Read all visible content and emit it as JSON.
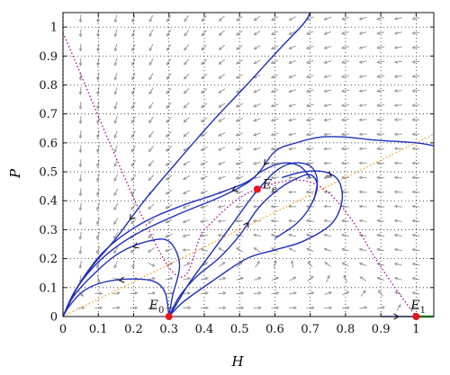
{
  "chart_data": {
    "type": "phase-portrait",
    "xlabel": "H",
    "ylabel": "P",
    "xlim": [
      0,
      1.05
    ],
    "ylim": [
      0,
      1.05
    ],
    "xticks": [
      0,
      0.1,
      0.2,
      0.3,
      0.4,
      0.5,
      0.6,
      0.7,
      0.8,
      0.9,
      1
    ],
    "yticks": [
      0,
      0.1,
      0.2,
      0.3,
      0.4,
      0.5,
      0.6,
      0.7,
      0.8,
      0.9,
      1
    ],
    "xtick_labels": [
      "0",
      "0.1",
      "0.2",
      "0.3",
      "0.4",
      "0.5",
      "0.6",
      "0.7",
      "0.8",
      "0.9",
      "1"
    ],
    "ytick_labels": [
      "0",
      "0.1",
      "0.2",
      "0.3",
      "0.4",
      "0.5",
      "0.6",
      "0.7",
      "0.8",
      "0.9",
      "1"
    ],
    "grid": "dotted",
    "colors": {
      "trajectory": "#1f2fb8",
      "equilibrium": "#e8141e",
      "vector_field": "#9a9a9a",
      "nullcline_h": "#b1008f",
      "nullcline_p": "#ff9a1e",
      "axis_segment": "#2fb52f"
    },
    "equilibria": [
      {
        "label": "E0",
        "sub": "0",
        "main": "E",
        "x": 0.3,
        "y": 0.0
      },
      {
        "label": "E1",
        "sub": "1",
        "main": "E",
        "x": 1.0,
        "y": 0.0
      },
      {
        "label": "Ee",
        "sub": "e",
        "main": "E",
        "x": 0.55,
        "y": 0.44
      }
    ],
    "trajectories": [
      {
        "points": [
          [
            0,
            0
          ],
          [
            0.03,
            0.08
          ],
          [
            0.08,
            0.17
          ],
          [
            0.15,
            0.27
          ],
          [
            0.23,
            0.4
          ],
          [
            0.32,
            0.53
          ],
          [
            0.42,
            0.67
          ],
          [
            0.52,
            0.8
          ],
          [
            0.61,
            0.92
          ],
          [
            0.68,
            1.01
          ],
          [
            0.7,
            1.05
          ]
        ],
        "arrow_at": 3,
        "arrow_dir": -1
      },
      {
        "points": [
          [
            0,
            0
          ],
          [
            0.05,
            0.12
          ],
          [
            0.12,
            0.23
          ],
          [
            0.22,
            0.32
          ],
          [
            0.33,
            0.38
          ],
          [
            0.45,
            0.43
          ],
          [
            0.54,
            0.48
          ],
          [
            0.6,
            0.57
          ],
          [
            0.66,
            0.6
          ],
          [
            0.73,
            0.62
          ],
          [
            0.8,
            0.62
          ],
          [
            0.88,
            0.61
          ],
          [
            1.0,
            0.6
          ],
          [
            1.05,
            0.59
          ]
        ],
        "arrow_at": 6,
        "arrow_dir": -1
      },
      {
        "points": [
          [
            0,
            0
          ],
          [
            0.04,
            0.1
          ],
          [
            0.11,
            0.2
          ],
          [
            0.2,
            0.28
          ],
          [
            0.32,
            0.35
          ],
          [
            0.44,
            0.41
          ],
          [
            0.52,
            0.46
          ],
          [
            0.56,
            0.5
          ],
          [
            0.62,
            0.53
          ],
          [
            0.67,
            0.52
          ],
          [
            0.7,
            0.48
          ]
        ],
        "arrow_at": 5,
        "arrow_dir": -1
      },
      {
        "points": [
          [
            0,
            0
          ],
          [
            0.03,
            0.07
          ],
          [
            0.09,
            0.15
          ],
          [
            0.16,
            0.22
          ],
          [
            0.24,
            0.26
          ],
          [
            0.3,
            0.26
          ],
          [
            0.33,
            0.18
          ],
          [
            0.31,
            0.07
          ],
          [
            0.3,
            0
          ]
        ],
        "arrow_at": 3,
        "arrow_dir": -1
      },
      {
        "points": [
          [
            0,
            0
          ],
          [
            0.02,
            0.04
          ],
          [
            0.06,
            0.09
          ],
          [
            0.12,
            0.12
          ],
          [
            0.2,
            0.13
          ],
          [
            0.26,
            0.12
          ],
          [
            0.29,
            0.08
          ],
          [
            0.3,
            0
          ]
        ],
        "arrow_at": 3,
        "arrow_dir": -1
      },
      {
        "points": [
          [
            0.3,
            0
          ],
          [
            0.33,
            0.07
          ],
          [
            0.38,
            0.14
          ],
          [
            0.44,
            0.2
          ],
          [
            0.5,
            0.28
          ],
          [
            0.55,
            0.37
          ],
          [
            0.6,
            0.43
          ],
          [
            0.65,
            0.47
          ],
          [
            0.7,
            0.49
          ],
          [
            0.72,
            0.45
          ],
          [
            0.7,
            0.38
          ],
          [
            0.66,
            0.32
          ],
          [
            0.6,
            0.27
          ]
        ],
        "arrow_at": 4,
        "arrow_dir": 1
      },
      {
        "points": [
          [
            0.3,
            0
          ],
          [
            0.34,
            0.05
          ],
          [
            0.42,
            0.12
          ],
          [
            0.52,
            0.2
          ],
          [
            0.6,
            0.23
          ],
          [
            0.68,
            0.26
          ],
          [
            0.76,
            0.32
          ],
          [
            0.79,
            0.4
          ],
          [
            0.78,
            0.47
          ],
          [
            0.74,
            0.5
          ],
          [
            0.68,
            0.5
          ],
          [
            0.62,
            0.48
          ]
        ],
        "arrow_at": 8,
        "arrow_dir": -1
      },
      {
        "points": [
          [
            0.3,
            0
          ],
          [
            0.32,
            0.04
          ],
          [
            0.36,
            0.12
          ],
          [
            0.42,
            0.22
          ],
          [
            0.48,
            0.32
          ],
          [
            0.54,
            0.42
          ],
          [
            0.6,
            0.5
          ],
          [
            0.65,
            0.53
          ],
          [
            0.7,
            0.52
          ],
          [
            0.72,
            0.47
          ],
          [
            0.71,
            0.4
          ]
        ],
        "arrow_at": null,
        "arrow_dir": 1
      },
      {
        "points": [
          [
            0.9,
            0
          ],
          [
            1.0,
            0
          ]
        ],
        "arrow_at": 0,
        "arrow_dir": 1
      }
    ],
    "nullcline_h": [
      [
        0,
        0.98
      ],
      [
        0.3,
        0.17
      ],
      [
        0.4,
        0.3
      ],
      [
        0.5,
        0.41
      ],
      [
        0.6,
        0.46
      ],
      [
        0.68,
        0.47
      ],
      [
        0.75,
        0.43
      ],
      [
        0.82,
        0.33
      ],
      [
        0.88,
        0.21
      ],
      [
        0.94,
        0.1
      ],
      [
        1.0,
        0
      ]
    ],
    "nullcline_p": [
      [
        0,
        0
      ],
      [
        0.2,
        0.12
      ],
      [
        0.4,
        0.24
      ],
      [
        0.6,
        0.36
      ],
      [
        0.8,
        0.48
      ],
      [
        1.0,
        0.6
      ],
      [
        1.05,
        0.63
      ]
    ],
    "axis_segment": [
      [
        1.0,
        0
      ],
      [
        1.05,
        0
      ]
    ]
  }
}
